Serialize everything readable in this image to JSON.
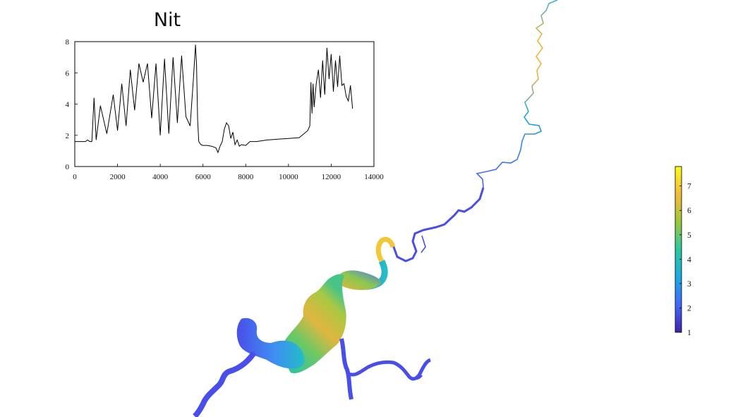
{
  "chart_data": [
    {
      "type": "line",
      "title": "Nit",
      "xlabel": "",
      "ylabel": "",
      "xlim": [
        0,
        14000
      ],
      "ylim": [
        0,
        8
      ],
      "xticks": [
        0,
        2000,
        4000,
        6000,
        8000,
        10000,
        12000,
        14000
      ],
      "yticks": [
        0,
        2,
        4,
        6,
        8
      ],
      "grid": false,
      "line_color": "#000000",
      "series": [
        {
          "x": [
            0,
            500,
            600,
            700,
            800,
            900,
            1000,
            1200,
            1500,
            1800,
            2000,
            2200,
            2400,
            2600,
            2800,
            3000,
            3200,
            3400,
            3600,
            3800,
            4000,
            4200,
            4400,
            4600,
            4800,
            5000,
            5200,
            5400,
            5550,
            5650,
            5700,
            5750,
            5800,
            5850,
            5900,
            6000,
            6200,
            6400,
            6600,
            6700,
            6800,
            6900,
            7000,
            7100,
            7200,
            7300,
            7400,
            7500,
            7600,
            7700,
            7800,
            8000,
            8200,
            8500,
            9000,
            9500,
            10000,
            10500,
            10900,
            11000,
            11050,
            11100,
            11150,
            11200,
            11300,
            11400,
            11500,
            11600,
            11700,
            11800,
            11900,
            12000,
            12100,
            12200,
            12300,
            12400,
            12500,
            12600,
            12700,
            12800,
            12900,
            13000
          ],
          "y": [
            1.6,
            1.6,
            1.7,
            1.6,
            1.6,
            4.4,
            1.7,
            3.9,
            2.1,
            4.6,
            2.3,
            5.3,
            2.6,
            6.2,
            3.6,
            6.6,
            5.4,
            6.6,
            3.1,
            6.6,
            2.0,
            6.9,
            2.1,
            7.0,
            2.8,
            7.1,
            3.2,
            2.6,
            5.6,
            7.8,
            6.5,
            3.0,
            1.6,
            1.5,
            1.4,
            1.35,
            1.35,
            1.3,
            1.2,
            0.9,
            1.3,
            1.6,
            2.4,
            2.8,
            2.6,
            1.8,
            2.2,
            1.4,
            1.7,
            1.3,
            1.4,
            1.35,
            1.6,
            1.6,
            1.7,
            1.75,
            1.8,
            1.85,
            2.3,
            2.6,
            5.4,
            3.4,
            5.3,
            3.8,
            5.3,
            6.2,
            4.4,
            6.8,
            4.6,
            7.6,
            5.6,
            7.2,
            4.8,
            6.8,
            5.1,
            7.1,
            5.2,
            5.3,
            4.5,
            4.2,
            5.2,
            3.7
          ]
        }
      ]
    },
    {
      "type": "heatmap",
      "title": "",
      "colorbar": {
        "range": [
          1,
          7.8
        ],
        "ticks": [
          1,
          2,
          3,
          4,
          5,
          6,
          7
        ],
        "colors": [
          "#3e26a8",
          "#4268fe",
          "#1caadf",
          "#2bc8a0",
          "#9bc73a",
          "#f5ba3d",
          "#f9fb15"
        ]
      }
    }
  ]
}
